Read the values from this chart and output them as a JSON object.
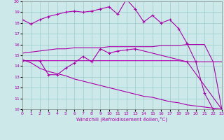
{
  "xlabel": "Windchill (Refroidissement éolien,°C)",
  "xlim": [
    0,
    23
  ],
  "ylim": [
    10,
    20
  ],
  "xticks": [
    0,
    1,
    2,
    3,
    4,
    5,
    6,
    7,
    8,
    9,
    10,
    11,
    12,
    13,
    14,
    15,
    16,
    17,
    18,
    19,
    20,
    21,
    22,
    23
  ],
  "yticks": [
    10,
    11,
    12,
    13,
    14,
    15,
    16,
    17,
    18,
    19,
    20
  ],
  "background_color": "#cce8e8",
  "line_color": "#aa00aa",
  "grid_color": "#99cccc",
  "line1_x": [
    0,
    1,
    2,
    3,
    4,
    5,
    6,
    7,
    8,
    9,
    10,
    11,
    12,
    13,
    14,
    15,
    16,
    17,
    18,
    19,
    20,
    21,
    22,
    23
  ],
  "line1_y": [
    18.3,
    17.9,
    18.3,
    18.6,
    18.8,
    19.0,
    19.1,
    19.0,
    19.1,
    19.3,
    19.5,
    18.8,
    20.2,
    19.3,
    18.1,
    18.7,
    18.0,
    18.3,
    17.5,
    16.1,
    14.4,
    11.5,
    10.0,
    10.0
  ],
  "line2_x": [
    0,
    1,
    2,
    3,
    4,
    5,
    6,
    7,
    8,
    9,
    10,
    11,
    12,
    13,
    14,
    15,
    16,
    17,
    18,
    19,
    20,
    21,
    22,
    23
  ],
  "line2_y": [
    14.5,
    14.5,
    14.5,
    14.5,
    14.5,
    14.5,
    14.5,
    14.5,
    14.5,
    14.5,
    14.5,
    14.5,
    14.5,
    14.5,
    14.5,
    14.5,
    14.5,
    14.5,
    14.5,
    14.4,
    14.4,
    14.4,
    14.4,
    14.4
  ],
  "line2_markers_x": [
    0,
    2,
    3,
    4,
    5,
    6,
    7,
    8,
    9,
    10,
    11,
    12,
    13,
    19,
    23
  ],
  "line2_markers_y": [
    14.5,
    14.5,
    13.2,
    13.2,
    13.8,
    14.3,
    14.9,
    14.4,
    15.6,
    15.2,
    15.4,
    15.5,
    15.6,
    14.4,
    10.0
  ],
  "line3_x": [
    0,
    1,
    2,
    3,
    4,
    5,
    6,
    7,
    8,
    9,
    10,
    11,
    12,
    13,
    14,
    15,
    16,
    17,
    18,
    19,
    20,
    21,
    22,
    23
  ],
  "line3_y": [
    15.2,
    15.3,
    15.4,
    15.5,
    15.6,
    15.6,
    15.7,
    15.7,
    15.7,
    15.7,
    15.8,
    15.8,
    15.8,
    15.8,
    15.8,
    15.8,
    15.9,
    15.9,
    15.9,
    16.0,
    16.0,
    16.0,
    14.4,
    10.0
  ],
  "line4_x": [
    0,
    1,
    2,
    3,
    4,
    5,
    6,
    7,
    8,
    9,
    10,
    11,
    12,
    13,
    14,
    15,
    16,
    17,
    18,
    19,
    20,
    21,
    22,
    23
  ],
  "line4_y": [
    14.6,
    14.3,
    13.8,
    13.5,
    13.3,
    13.1,
    12.8,
    12.6,
    12.4,
    12.2,
    12.0,
    11.8,
    11.6,
    11.4,
    11.2,
    11.1,
    10.9,
    10.7,
    10.6,
    10.4,
    10.3,
    10.2,
    10.1,
    10.0
  ]
}
